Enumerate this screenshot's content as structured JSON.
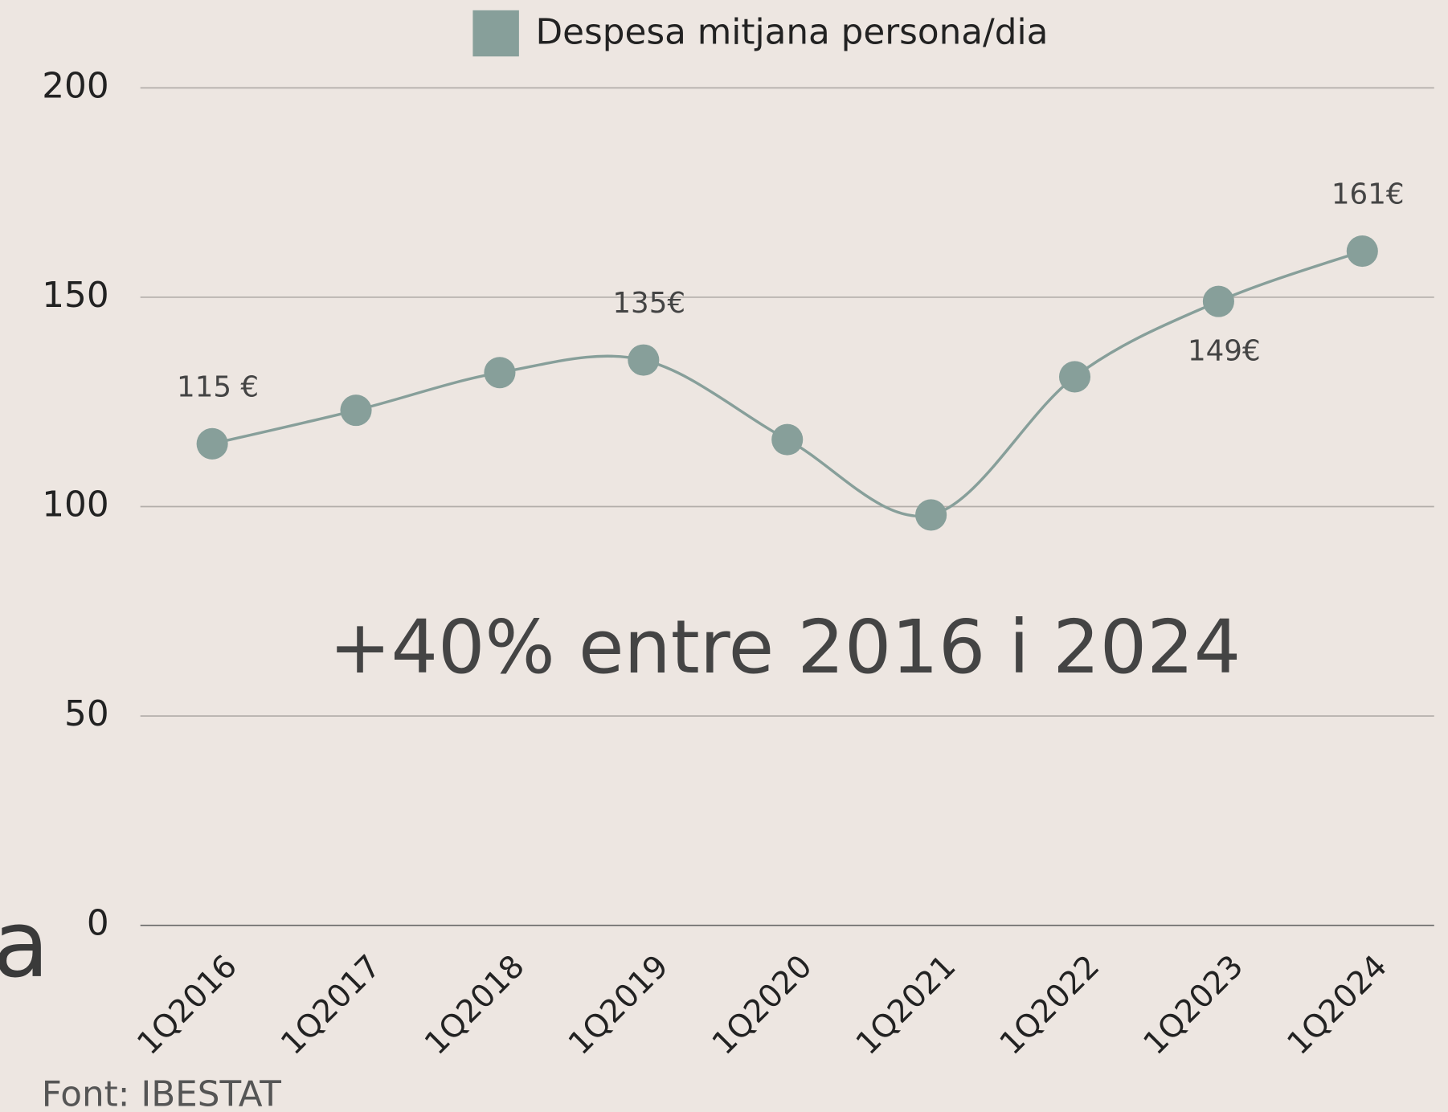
{
  "chart_data": {
    "type": "line",
    "legend": "Despesa mitjana persona/dia",
    "annotation": "+40% entre 2016 i 2024",
    "source": "Font: IBESTAT",
    "cropped_text": "a",
    "categories": [
      "1Q2016",
      "1Q2017",
      "1Q2018",
      "1Q2019",
      "1Q2020",
      "1Q2021",
      "1Q2022",
      "1Q2023",
      "1Q2024"
    ],
    "series": [
      {
        "name": "Despesa mitjana persona/dia",
        "color": "#879f9a",
        "values": [
          115,
          123,
          132,
          135,
          116,
          98,
          131,
          149,
          161
        ],
        "value_labels": [
          "115 €",
          null,
          null,
          "135€",
          null,
          null,
          null,
          "149€",
          "161€"
        ]
      }
    ],
    "ylim": [
      0,
      200
    ],
    "yticks": [
      0,
      50,
      100,
      150,
      200
    ],
    "grid": true
  }
}
